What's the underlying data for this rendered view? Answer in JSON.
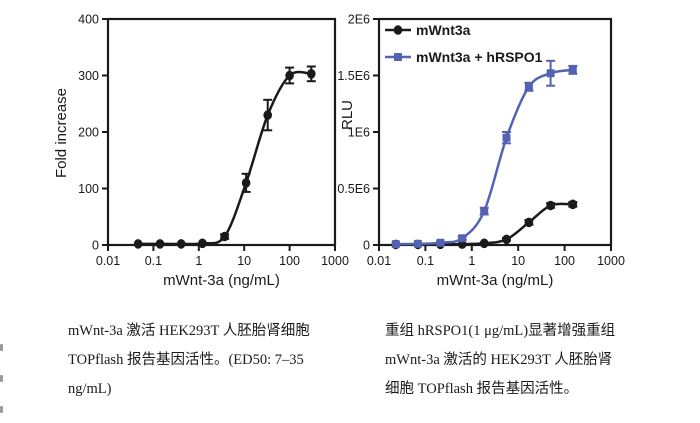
{
  "colors": {
    "ink": "#1a1a1a",
    "blue": "#5462b2",
    "background": "#ffffff"
  },
  "chart_data": [
    {
      "type": "line",
      "name": "topflash-fold-increase-chart",
      "title": "",
      "xlabel": "mWnt-3a (ng/mL)",
      "ylabel": "Fold increase",
      "xscale": "log",
      "xlim": [
        0.01,
        1000
      ],
      "ylim": [
        0,
        400
      ],
      "grid": false,
      "xtick_values": [
        0.01,
        0.1,
        1,
        10,
        100,
        1000
      ],
      "xtick_labels": [
        "0.01",
        "0.1",
        "1",
        "10",
        "100",
        "1000"
      ],
      "ytick_values": [
        0,
        100,
        200,
        300,
        400
      ],
      "ytick_labels": [
        "0",
        "100",
        "200",
        "300",
        "400"
      ],
      "legend_position": "none",
      "series": [
        {
          "name": "mWnt3a",
          "color": "ink",
          "marker": "circle",
          "x": [
            0.046,
            0.14,
            0.41,
            1.2,
            3.7,
            11,
            33,
            100,
            300
          ],
          "y": [
            2,
            2,
            2,
            3,
            15,
            110,
            230,
            300,
            303
          ],
          "yerr": [
            0,
            0,
            0,
            0,
            4,
            16,
            27,
            14,
            13
          ]
        }
      ]
    },
    {
      "type": "line",
      "name": "topflash-rlu-chart",
      "title": "",
      "xlabel": "mWnt-3a (ng/mL)",
      "ylabel": "RLU",
      "xscale": "log",
      "xlim": [
        0.01,
        1000
      ],
      "ylim": [
        0,
        2000000
      ],
      "grid": false,
      "xtick_values": [
        0.01,
        0.1,
        1,
        10,
        100,
        1000
      ],
      "xtick_labels": [
        "0.01",
        "0.1",
        "1",
        "10",
        "100",
        "1000"
      ],
      "ytick_values": [
        0,
        500000,
        1000000,
        1500000,
        2000000
      ],
      "ytick_labels": [
        "0",
        "0.5E6",
        "1E6",
        "1.5E6",
        "2E6"
      ],
      "legend_position": "top-left-inside",
      "series": [
        {
          "name": "mWnt3a",
          "color": "ink",
          "marker": "circle",
          "x": [
            0.023,
            0.069,
            0.21,
            0.62,
            1.85,
            5.6,
            17,
            50,
            150
          ],
          "y": [
            5000,
            5000,
            6000,
            8000,
            15000,
            50000,
            200000,
            350000,
            360000
          ],
          "yerr": [
            0,
            0,
            0,
            0,
            0,
            12000,
            20000,
            20000,
            20000
          ]
        },
        {
          "name": "mWnt3a + hRSPO1",
          "color": "blue",
          "marker": "square",
          "x": [
            0.023,
            0.069,
            0.21,
            0.62,
            1.85,
            5.6,
            17,
            50,
            150
          ],
          "y": [
            8000,
            10000,
            20000,
            60000,
            300000,
            950000,
            1400000,
            1520000,
            1550000
          ],
          "yerr": [
            0,
            0,
            8000,
            15000,
            30000,
            50000,
            35000,
            110000,
            35000
          ]
        }
      ]
    }
  ],
  "captions": {
    "left": {
      "lines": [
        "mWnt-3a 激活 HEK293T 人胚胎肾细胞",
        "TOPflash 报告基因活性。(ED50: 7–35",
        "ng/mL)"
      ]
    },
    "right": {
      "lines": [
        "重组 hRSPO1(1 μg/mL)显著增强重组",
        "mWnt-3a 激活的 HEK293T 人胚胎肾",
        "细胞 TOPflash 报告基因活性。"
      ]
    }
  }
}
